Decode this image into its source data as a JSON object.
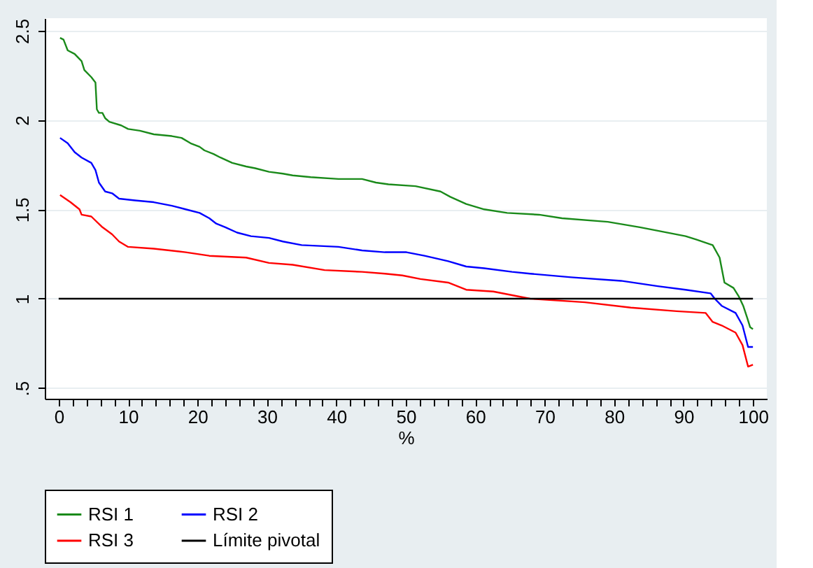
{
  "chart_data": {
    "type": "line",
    "xlabel": "%",
    "legend": "bottom",
    "grid": "y",
    "marker": "none",
    "line_style": "solid",
    "xlim": [
      -2,
      102
    ],
    "ylim": [
      0.44,
      2.57
    ],
    "xticks": [
      0,
      {
        "value": 2,
        "label": null
      },
      {
        "value": 4,
        "label": null
      },
      {
        "value": 6,
        "label": null
      },
      {
        "value": 8,
        "label": null
      },
      10,
      {
        "value": 12,
        "label": null
      },
      {
        "value": 14,
        "label": null
      },
      {
        "value": 16,
        "label": null
      },
      {
        "value": 18,
        "label": null
      },
      20,
      {
        "value": 22,
        "label": null
      },
      {
        "value": 24,
        "label": null
      },
      {
        "value": 26,
        "label": null
      },
      {
        "value": 28,
        "label": null
      },
      30,
      {
        "value": 32,
        "label": null
      },
      {
        "value": 34,
        "label": null
      },
      {
        "value": 36,
        "label": null
      },
      {
        "value": 38,
        "label": null
      },
      40,
      {
        "value": 42,
        "label": null
      },
      {
        "value": 44,
        "label": null
      },
      {
        "value": 46,
        "label": null
      },
      {
        "value": 48,
        "label": null
      },
      50,
      {
        "value": 52,
        "label": null
      },
      {
        "value": 54,
        "label": null
      },
      {
        "value": 56,
        "label": null
      },
      {
        "value": 58,
        "label": null
      },
      60,
      {
        "value": 62,
        "label": null
      },
      {
        "value": 64,
        "label": null
      },
      {
        "value": 66,
        "label": null
      },
      {
        "value": 68,
        "label": null
      },
      70,
      {
        "value": 72,
        "label": null
      },
      {
        "value": 74,
        "label": null
      },
      {
        "value": 76,
        "label": null
      },
      {
        "value": 78,
        "label": null
      },
      80,
      {
        "value": 82,
        "label": null
      },
      {
        "value": 84,
        "label": null
      },
      {
        "value": 86,
        "label": null
      },
      {
        "value": 88,
        "label": null
      },
      90,
      {
        "value": 92,
        "label": null
      },
      {
        "value": 94,
        "label": null
      },
      {
        "value": 96,
        "label": null
      },
      {
        "value": 98,
        "label": null
      },
      100
    ],
    "yticks": [
      {
        "value": 0.5,
        "label": ".5"
      },
      1,
      1.5,
      2,
      2.5
    ],
    "series": [
      {
        "name": "RSI 1",
        "color": "#1a8a1a",
        "x": [
          0.2,
          0.7,
          1.3,
          2.3,
          3.3,
          3.7,
          4.7,
          5.3,
          5.5,
          5.8,
          6.3,
          6.7,
          7.3,
          9,
          10,
          11.7,
          13.7,
          16.3,
          17.7,
          19,
          20.3,
          21,
          22.3,
          23.3,
          25,
          27,
          28.3,
          30.3,
          32.3,
          33.7,
          36.3,
          40.3,
          43.7,
          45.7,
          47.5,
          51.4,
          55,
          56.4,
          58.7,
          61.3,
          64.6,
          69.2,
          72.5,
          79.1,
          83.7,
          86.3,
          90.3,
          91.9,
          94.2,
          95.2,
          95.9,
          97.2,
          98,
          98.6,
          99.2,
          99.6,
          100
        ],
        "values": [
          2.46,
          2.45,
          2.39,
          2.37,
          2.33,
          2.28,
          2.24,
          2.21,
          2.06,
          2.04,
          2.04,
          2.01,
          1.99,
          1.97,
          1.95,
          1.94,
          1.92,
          1.91,
          1.9,
          1.87,
          1.85,
          1.83,
          1.81,
          1.79,
          1.76,
          1.74,
          1.73,
          1.71,
          1.7,
          1.69,
          1.68,
          1.67,
          1.67,
          1.65,
          1.64,
          1.63,
          1.6,
          1.57,
          1.53,
          1.5,
          1.48,
          1.47,
          1.45,
          1.43,
          1.4,
          1.38,
          1.35,
          1.33,
          1.3,
          1.23,
          1.09,
          1.06,
          1.01,
          0.96,
          0.89,
          0.84,
          0.83
        ]
      },
      {
        "name": "RSI 2",
        "color": "#0000ff",
        "x": [
          0.2,
          1.3,
          2.3,
          3.3,
          4.7,
          5.3,
          5.8,
          6.7,
          7.7,
          8.7,
          11,
          13.7,
          16.3,
          18.3,
          20.3,
          21.7,
          22.7,
          24,
          25.7,
          27.7,
          30.3,
          32.3,
          35,
          40.3,
          43.7,
          47,
          50.1,
          52.7,
          56.1,
          58.7,
          61.3,
          65.3,
          67.9,
          73.8,
          81,
          86.3,
          90.3,
          93.9,
          94.5,
          95.5,
          97.5,
          98.5,
          99.3,
          100
        ],
        "values": [
          1.9,
          1.87,
          1.82,
          1.79,
          1.76,
          1.72,
          1.65,
          1.6,
          1.59,
          1.56,
          1.55,
          1.54,
          1.52,
          1.5,
          1.48,
          1.45,
          1.42,
          1.4,
          1.37,
          1.35,
          1.34,
          1.32,
          1.3,
          1.29,
          1.27,
          1.26,
          1.26,
          1.24,
          1.21,
          1.18,
          1.17,
          1.15,
          1.14,
          1.12,
          1.1,
          1.07,
          1.05,
          1.03,
          1.0,
          0.96,
          0.92,
          0.85,
          0.73,
          0.73
        ]
      },
      {
        "name": "RSI 3",
        "color": "#ff0000",
        "x": [
          0.2,
          1.7,
          3,
          3.3,
          4.7,
          6.3,
          7.7,
          8.7,
          10,
          13.7,
          18.3,
          21.7,
          27,
          30.3,
          33.7,
          38.3,
          43.7,
          47,
          49.5,
          52.1,
          56.1,
          58.7,
          62.6,
          67.9,
          75.8,
          82.4,
          89,
          93.2,
          94.2,
          95.5,
          97.5,
          98.5,
          99.3,
          100
        ],
        "values": [
          1.58,
          1.54,
          1.5,
          1.47,
          1.46,
          1.4,
          1.36,
          1.32,
          1.29,
          1.28,
          1.26,
          1.24,
          1.23,
          1.2,
          1.19,
          1.16,
          1.15,
          1.14,
          1.13,
          1.11,
          1.09,
          1.05,
          1.04,
          1.0,
          0.98,
          0.95,
          0.93,
          0.92,
          0.87,
          0.85,
          0.81,
          0.74,
          0.62,
          0.63
        ]
      },
      {
        "name": "Límite pivotal",
        "color": "#000000",
        "x": [
          0,
          100
        ],
        "values": [
          1,
          1
        ]
      }
    ]
  }
}
